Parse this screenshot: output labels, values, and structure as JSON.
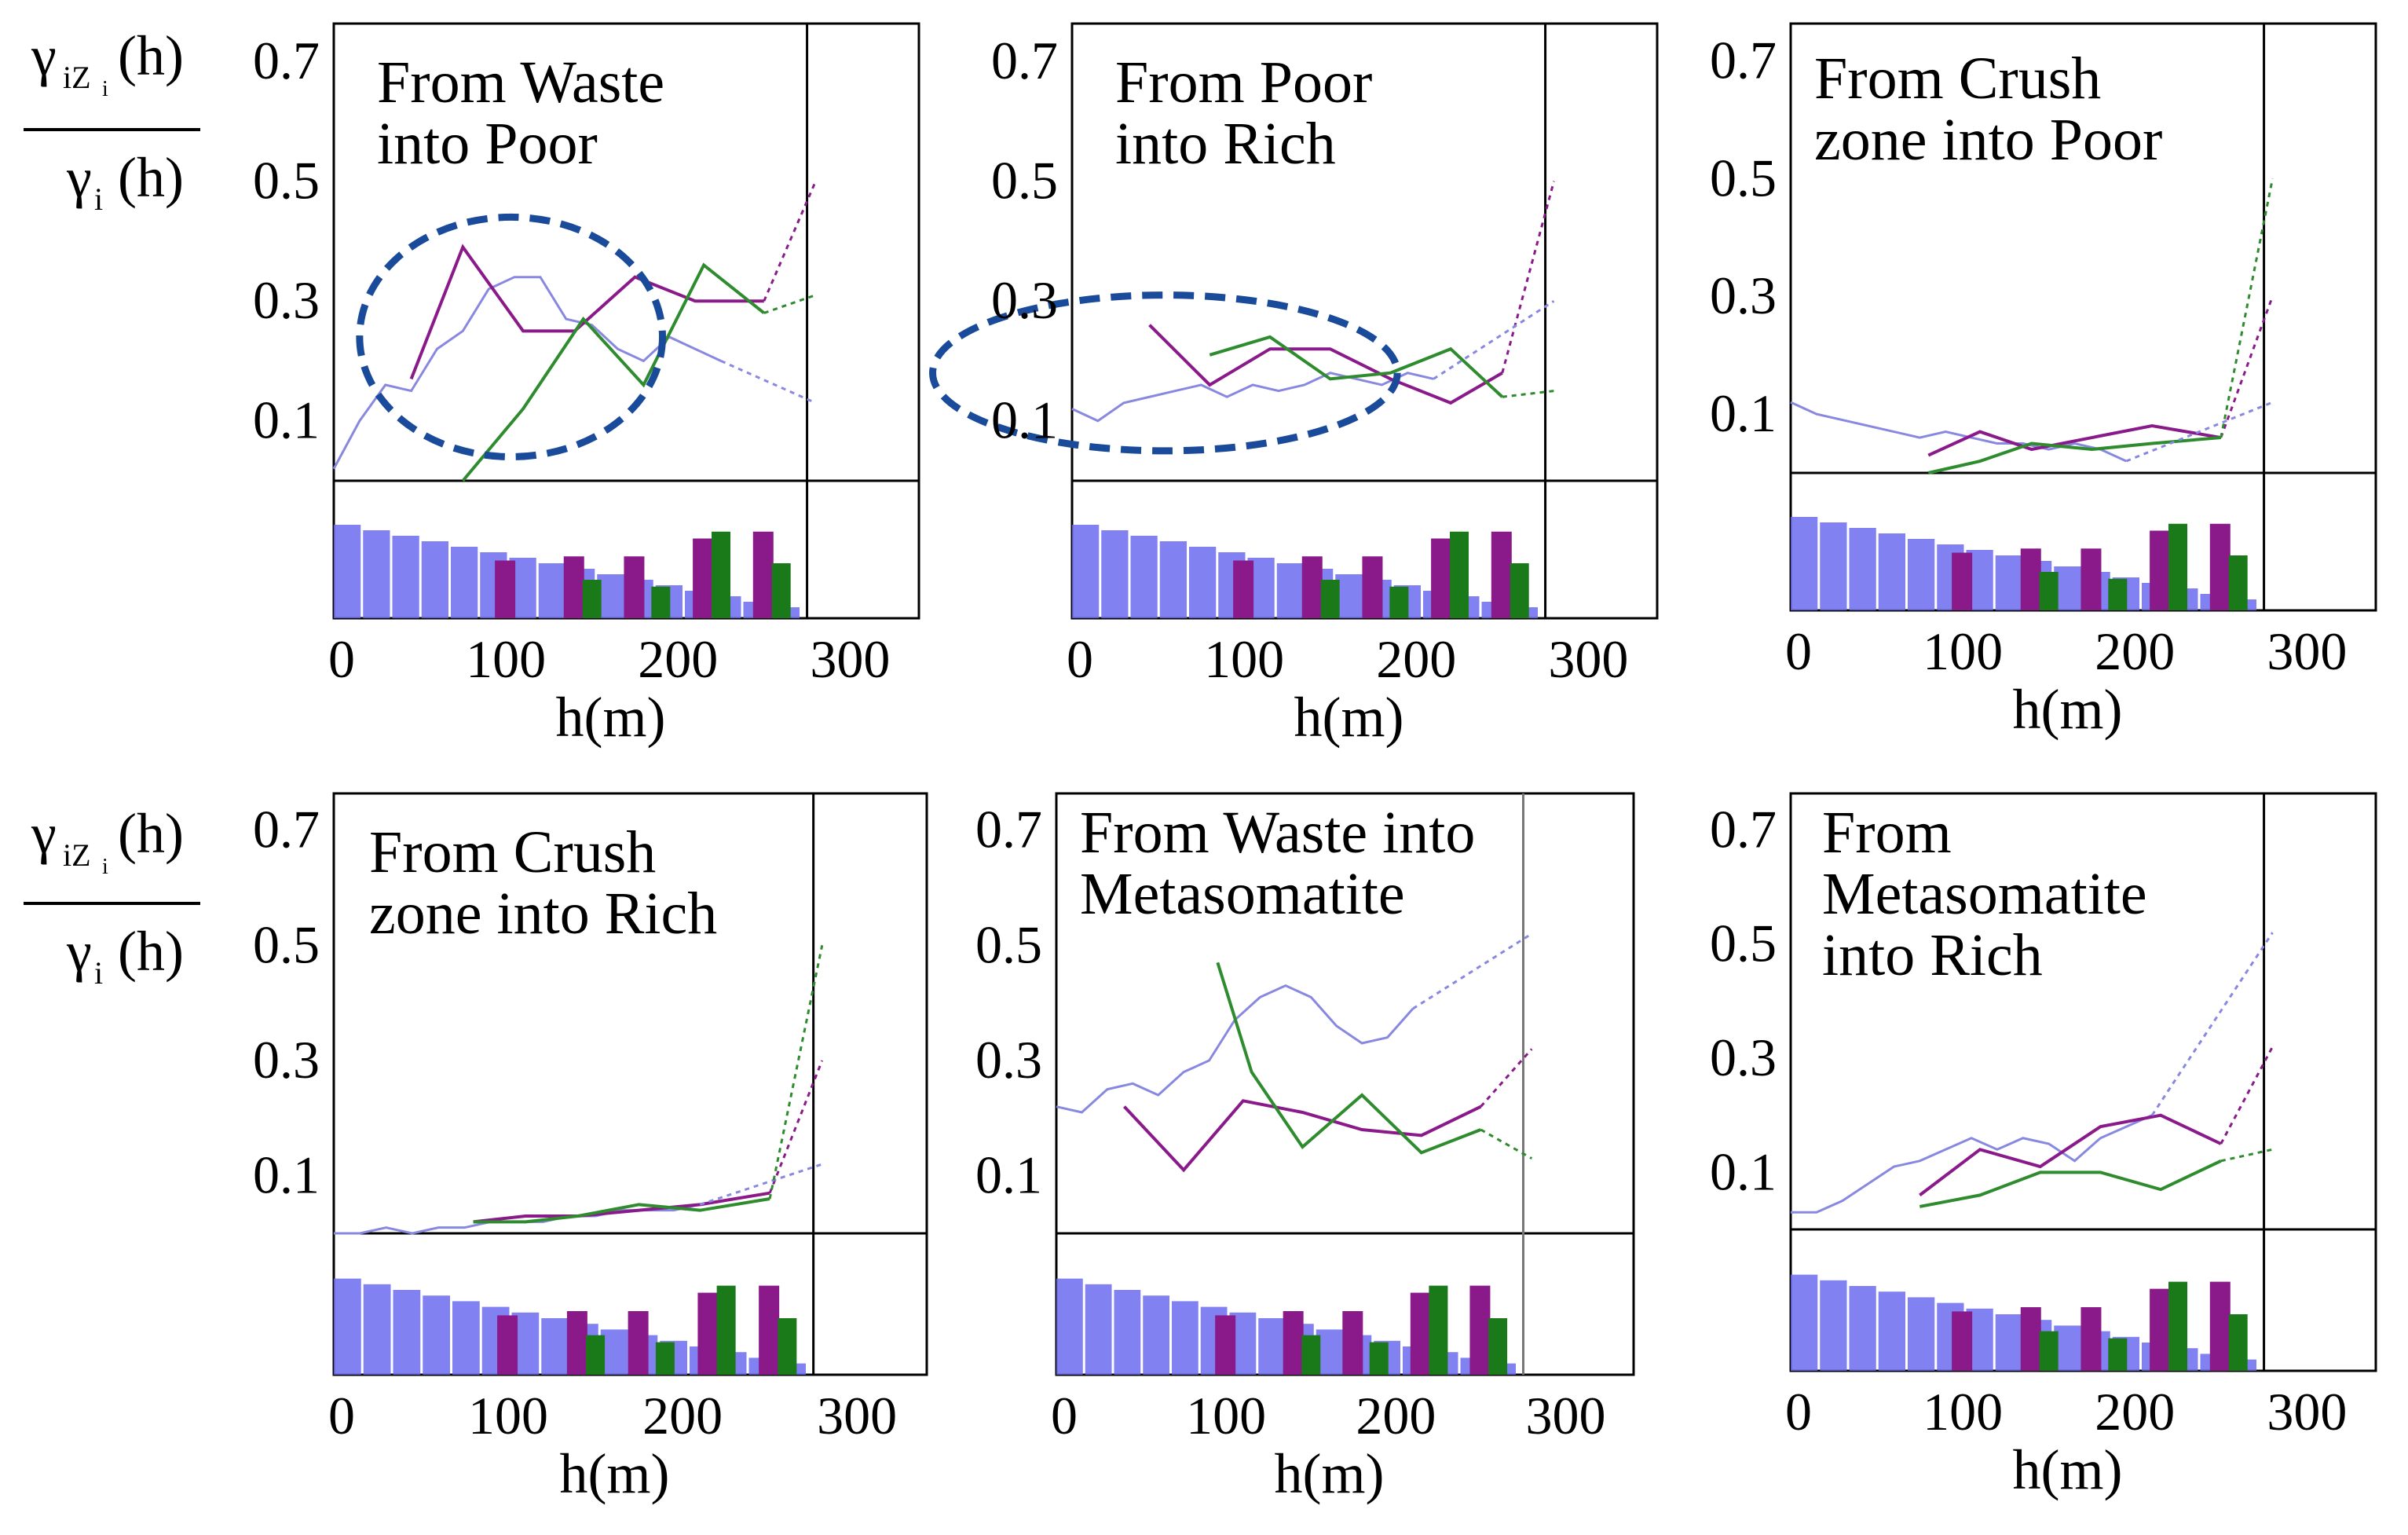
{
  "figure": {
    "ylabel": {
      "numerator": "γ",
      "num_sub": "iZ",
      "num_sub2": "i",
      "num_arg": "(h)",
      "denominator": "γ",
      "den_sub": "i",
      "den_arg": "(h)"
    },
    "colors": {
      "purple": "#8a1a8a",
      "green": "#2e8b2e",
      "lavender": "#8888e0",
      "blue_bar": "#6b6bf0",
      "dark_green": "#1a7a1a",
      "ellipse": "#1a4a9a"
    }
  },
  "chart_data": [
    {
      "type": "line",
      "title_lines": [
        "From Waste",
        "into Poor"
      ],
      "xlabel": "h(m)",
      "xticks": [
        "0",
        "100",
        "200",
        "300"
      ],
      "yticks": [
        "0.7",
        "0.5",
        "0.3",
        "0.1"
      ],
      "xlim": [
        0,
        340
      ],
      "ylim": [
        0,
        0.75
      ],
      "cutoff_x": 275,
      "series": [
        {
          "name": "lavender",
          "x": [
            0,
            15,
            30,
            45,
            60,
            75,
            90,
            105,
            120,
            135,
            150,
            165,
            180,
            195,
            210,
            225
          ],
          "y": [
            0.02,
            0.1,
            0.16,
            0.15,
            0.22,
            0.25,
            0.32,
            0.34,
            0.34,
            0.27,
            0.26,
            0.22,
            0.2,
            0.24,
            0.22,
            0.2
          ]
        },
        {
          "name": "purple",
          "x": [
            45,
            75,
            110,
            140,
            175,
            210,
            250
          ],
          "y": [
            0.17,
            0.39,
            0.25,
            0.25,
            0.34,
            0.3,
            0.3
          ]
        },
        {
          "name": "green",
          "x": [
            75,
            110,
            145,
            180,
            215,
            250
          ],
          "y": [
            0.0,
            0.12,
            0.27,
            0.16,
            0.36,
            0.28
          ]
        }
      ],
      "dotted": [
        {
          "name": "purple",
          "x": [
            250,
            280
          ],
          "y": [
            0.3,
            0.5
          ]
        },
        {
          "name": "lavender",
          "x": [
            225,
            280
          ],
          "y": [
            0.2,
            0.13
          ]
        },
        {
          "name": "green",
          "x": [
            250,
            280
          ],
          "y": [
            0.28,
            0.31
          ]
        }
      ],
      "bars": {
        "blue": [
          0.68,
          0.64,
          0.6,
          0.56,
          0.52,
          0.48,
          0.44,
          0.4,
          0.36,
          0.32,
          0.28,
          0.24,
          0.2,
          0.16,
          0.12,
          0.08
        ],
        "purple": [
          [
            100,
            0.42
          ],
          [
            140,
            0.45
          ],
          [
            175,
            0.45
          ],
          [
            215,
            0.58
          ],
          [
            250,
            0.63
          ]
        ],
        "green": [
          [
            150,
            0.28
          ],
          [
            190,
            0.23
          ],
          [
            225,
            0.63
          ],
          [
            260,
            0.4
          ]
        ]
      },
      "ellipse": {
        "cx": 103,
        "cy": 0.24,
        "rx": 88,
        "ry": 0.2
      }
    },
    {
      "type": "line",
      "title_lines": [
        "From Poor",
        "into Rich"
      ],
      "xlabel": "h(m)",
      "xticks": [
        "0",
        "100",
        "200",
        "300"
      ],
      "yticks": [
        "0.7",
        "0.5",
        "0.3",
        "0.1"
      ],
      "xlim": [
        0,
        340
      ],
      "ylim": [
        0,
        0.75
      ],
      "cutoff_x": 275,
      "series": [
        {
          "name": "lavender",
          "x": [
            0,
            15,
            30,
            45,
            60,
            75,
            90,
            105,
            120,
            135,
            150,
            165,
            180,
            195,
            210
          ],
          "y": [
            0.12,
            0.1,
            0.13,
            0.14,
            0.15,
            0.16,
            0.14,
            0.16,
            0.15,
            0.16,
            0.18,
            0.17,
            0.16,
            0.18,
            0.17
          ]
        },
        {
          "name": "purple",
          "x": [
            45,
            80,
            115,
            150,
            185,
            220,
            250
          ],
          "y": [
            0.26,
            0.16,
            0.22,
            0.22,
            0.17,
            0.13,
            0.18
          ]
        },
        {
          "name": "green",
          "x": [
            80,
            115,
            150,
            185,
            220,
            250
          ],
          "y": [
            0.21,
            0.24,
            0.17,
            0.18,
            0.22,
            0.14
          ]
        }
      ],
      "dotted": [
        {
          "name": "purple",
          "x": [
            250,
            280
          ],
          "y": [
            0.18,
            0.5
          ]
        },
        {
          "name": "lavender",
          "x": [
            210,
            280
          ],
          "y": [
            0.17,
            0.3
          ]
        },
        {
          "name": "green",
          "x": [
            250,
            280
          ],
          "y": [
            0.14,
            0.15
          ]
        }
      ],
      "bars": {
        "blue": [
          0.68,
          0.64,
          0.6,
          0.56,
          0.52,
          0.48,
          0.44,
          0.4,
          0.36,
          0.32,
          0.28,
          0.24,
          0.2,
          0.16,
          0.12,
          0.08
        ],
        "purple": [
          [
            100,
            0.42
          ],
          [
            140,
            0.45
          ],
          [
            175,
            0.45
          ],
          [
            215,
            0.58
          ],
          [
            250,
            0.63
          ]
        ],
        "green": [
          [
            150,
            0.28
          ],
          [
            190,
            0.23
          ],
          [
            225,
            0.63
          ],
          [
            260,
            0.4
          ]
        ]
      },
      "ellipse": {
        "cx": 54,
        "cy": 0.18,
        "rx": 135,
        "ry": 0.13
      }
    },
    {
      "type": "line",
      "title_lines": [
        "From Crush",
        "zone into Poor"
      ],
      "xlabel": "h(m)",
      "xticks": [
        "0",
        "100",
        "200",
        "300"
      ],
      "yticks": [
        "0.7",
        "0.5",
        "0.3",
        "0.1"
      ],
      "xlim": [
        0,
        340
      ],
      "ylim": [
        0,
        0.75
      ],
      "cutoff_x": 275,
      "series": [
        {
          "name": "lavender",
          "x": [
            0,
            15,
            30,
            45,
            60,
            75,
            90,
            105,
            120,
            135,
            150,
            165,
            180,
            195
          ],
          "y": [
            0.12,
            0.1,
            0.09,
            0.08,
            0.07,
            0.06,
            0.07,
            0.06,
            0.05,
            0.05,
            0.04,
            0.05,
            0.04,
            0.02
          ]
        },
        {
          "name": "purple",
          "x": [
            80,
            110,
            140,
            175,
            210,
            250
          ],
          "y": [
            0.03,
            0.07,
            0.04,
            0.06,
            0.08,
            0.06
          ]
        },
        {
          "name": "green",
          "x": [
            80,
            110,
            140,
            175,
            210,
            250
          ],
          "y": [
            0.0,
            0.02,
            0.05,
            0.04,
            0.05,
            0.06
          ]
        }
      ],
      "dotted": [
        {
          "name": "purple",
          "x": [
            250,
            280
          ],
          "y": [
            0.06,
            0.3
          ]
        },
        {
          "name": "lavender",
          "x": [
            195,
            280
          ],
          "y": [
            0.02,
            0.12
          ]
        },
        {
          "name": "green",
          "x": [
            250,
            280
          ],
          "y": [
            0.06,
            0.5
          ]
        }
      ],
      "bars": {
        "blue": [
          0.68,
          0.64,
          0.6,
          0.56,
          0.52,
          0.48,
          0.44,
          0.4,
          0.36,
          0.32,
          0.28,
          0.24,
          0.2,
          0.16,
          0.12,
          0.08
        ],
        "purple": [
          [
            100,
            0.42
          ],
          [
            140,
            0.45
          ],
          [
            175,
            0.45
          ],
          [
            215,
            0.58
          ],
          [
            250,
            0.63
          ]
        ],
        "green": [
          [
            150,
            0.28
          ],
          [
            190,
            0.23
          ],
          [
            225,
            0.63
          ],
          [
            260,
            0.4
          ]
        ]
      }
    },
    {
      "type": "line",
      "title_lines": [
        "From Crush",
        "zone into Rich"
      ],
      "xlabel": "h(m)",
      "xticks": [
        "0",
        "100",
        "200",
        "300"
      ],
      "yticks": [
        "0.7",
        "0.5",
        "0.3",
        "0.1"
      ],
      "xlim": [
        0,
        340
      ],
      "ylim": [
        0,
        0.75
      ],
      "cutoff_x": 275,
      "series": [
        {
          "name": "lavender",
          "x": [
            0,
            15,
            30,
            45,
            60,
            75,
            90,
            105,
            120,
            135,
            150,
            165,
            180,
            195,
            210
          ],
          "y": [
            0.0,
            0.0,
            0.01,
            0.0,
            0.01,
            0.01,
            0.02,
            0.02,
            0.02,
            0.03,
            0.03,
            0.04,
            0.04,
            0.04,
            0.05
          ]
        },
        {
          "name": "purple",
          "x": [
            80,
            110,
            140,
            175,
            210,
            250
          ],
          "y": [
            0.02,
            0.03,
            0.03,
            0.04,
            0.05,
            0.07
          ]
        },
        {
          "name": "green",
          "x": [
            80,
            110,
            140,
            175,
            210,
            250
          ],
          "y": [
            0.02,
            0.02,
            0.03,
            0.05,
            0.04,
            0.06
          ]
        }
      ],
      "dotted": [
        {
          "name": "purple",
          "x": [
            250,
            280
          ],
          "y": [
            0.07,
            0.3
          ]
        },
        {
          "name": "lavender",
          "x": [
            210,
            280
          ],
          "y": [
            0.05,
            0.12
          ]
        },
        {
          "name": "green",
          "x": [
            250,
            280
          ],
          "y": [
            0.06,
            0.5
          ]
        }
      ],
      "bars": {
        "blue": [
          0.68,
          0.64,
          0.6,
          0.56,
          0.52,
          0.48,
          0.44,
          0.4,
          0.36,
          0.32,
          0.28,
          0.24,
          0.2,
          0.16,
          0.12,
          0.08
        ],
        "purple": [
          [
            100,
            0.42
          ],
          [
            140,
            0.45
          ],
          [
            175,
            0.45
          ],
          [
            215,
            0.58
          ],
          [
            250,
            0.63
          ]
        ],
        "green": [
          [
            150,
            0.28
          ],
          [
            190,
            0.23
          ],
          [
            225,
            0.63
          ],
          [
            260,
            0.4
          ]
        ]
      }
    },
    {
      "type": "line",
      "title_lines": [
        "From Waste into",
        "Metasomatite"
      ],
      "xlabel": "h(m)",
      "xticks": [
        "0",
        "100",
        "200",
        "300"
      ],
      "yticks": [
        "0.7",
        "0.5",
        "0.3",
        "0.1"
      ],
      "xlim": [
        0,
        340
      ],
      "ylim": [
        0,
        0.75
      ],
      "cutoff_x": 275,
      "series": [
        {
          "name": "lavender",
          "x": [
            0,
            15,
            30,
            45,
            60,
            75,
            90,
            105,
            120,
            135,
            150,
            165,
            180,
            195,
            210
          ],
          "y": [
            0.22,
            0.21,
            0.25,
            0.26,
            0.24,
            0.28,
            0.3,
            0.37,
            0.41,
            0.43,
            0.41,
            0.36,
            0.33,
            0.34,
            0.39
          ]
        },
        {
          "name": "purple",
          "x": [
            40,
            75,
            110,
            145,
            180,
            215,
            250
          ],
          "y": [
            0.22,
            0.11,
            0.23,
            0.21,
            0.18,
            0.17,
            0.22
          ]
        },
        {
          "name": "green",
          "x": [
            95,
            115,
            145,
            180,
            215,
            250
          ],
          "y": [
            0.47,
            0.28,
            0.15,
            0.24,
            0.14,
            0.18
          ]
        }
      ],
      "dotted": [
        {
          "name": "purple",
          "x": [
            250,
            280
          ],
          "y": [
            0.22,
            0.32
          ]
        },
        {
          "name": "lavender",
          "x": [
            210,
            280
          ],
          "y": [
            0.39,
            0.52
          ]
        },
        {
          "name": "green",
          "x": [
            250,
            280
          ],
          "y": [
            0.18,
            0.13
          ]
        }
      ],
      "bars": {
        "blue": [
          0.68,
          0.64,
          0.6,
          0.56,
          0.52,
          0.48,
          0.44,
          0.4,
          0.36,
          0.32,
          0.28,
          0.24,
          0.2,
          0.16,
          0.12,
          0.08
        ],
        "purple": [
          [
            100,
            0.42
          ],
          [
            140,
            0.45
          ],
          [
            175,
            0.45
          ],
          [
            215,
            0.58
          ],
          [
            250,
            0.63
          ]
        ],
        "green": [
          [
            150,
            0.28
          ],
          [
            190,
            0.23
          ],
          [
            225,
            0.63
          ],
          [
            260,
            0.4
          ]
        ]
      }
    },
    {
      "type": "line",
      "title_lines": [
        "From",
        "Metasomatite",
        "into Rich"
      ],
      "xlabel": "h(m)",
      "xticks": [
        "0",
        "100",
        "200",
        "300"
      ],
      "yticks": [
        "0.7",
        "0.5",
        "0.3",
        "0.1"
      ],
      "xlim": [
        0,
        340
      ],
      "ylim": [
        0,
        0.75
      ],
      "cutoff_x": 275,
      "series": [
        {
          "name": "lavender",
          "x": [
            0,
            15,
            30,
            45,
            60,
            75,
            90,
            105,
            120,
            135,
            150,
            165,
            180,
            195,
            210
          ],
          "y": [
            0.03,
            0.03,
            0.05,
            0.08,
            0.11,
            0.12,
            0.14,
            0.16,
            0.14,
            0.16,
            0.15,
            0.12,
            0.16,
            0.18,
            0.2
          ]
        },
        {
          "name": "purple",
          "x": [
            75,
            110,
            145,
            180,
            215,
            250
          ],
          "y": [
            0.06,
            0.14,
            0.11,
            0.18,
            0.2,
            0.15
          ]
        },
        {
          "name": "green",
          "x": [
            75,
            110,
            145,
            180,
            215,
            250
          ],
          "y": [
            0.04,
            0.06,
            0.1,
            0.1,
            0.07,
            0.12
          ]
        }
      ],
      "dotted": [
        {
          "name": "purple",
          "x": [
            250,
            280
          ],
          "y": [
            0.15,
            0.32
          ]
        },
        {
          "name": "lavender",
          "x": [
            210,
            280
          ],
          "y": [
            0.2,
            0.52
          ]
        },
        {
          "name": "green",
          "x": [
            250,
            280
          ],
          "y": [
            0.12,
            0.14
          ]
        }
      ],
      "bars": {
        "blue": [
          0.68,
          0.64,
          0.6,
          0.56,
          0.52,
          0.48,
          0.44,
          0.4,
          0.36,
          0.32,
          0.28,
          0.24,
          0.2,
          0.16,
          0.12,
          0.08
        ],
        "purple": [
          [
            100,
            0.42
          ],
          [
            140,
            0.45
          ],
          [
            175,
            0.45
          ],
          [
            215,
            0.58
          ],
          [
            250,
            0.63
          ]
        ],
        "green": [
          [
            150,
            0.28
          ],
          [
            190,
            0.23
          ],
          [
            225,
            0.63
          ],
          [
            260,
            0.4
          ]
        ]
      }
    }
  ]
}
